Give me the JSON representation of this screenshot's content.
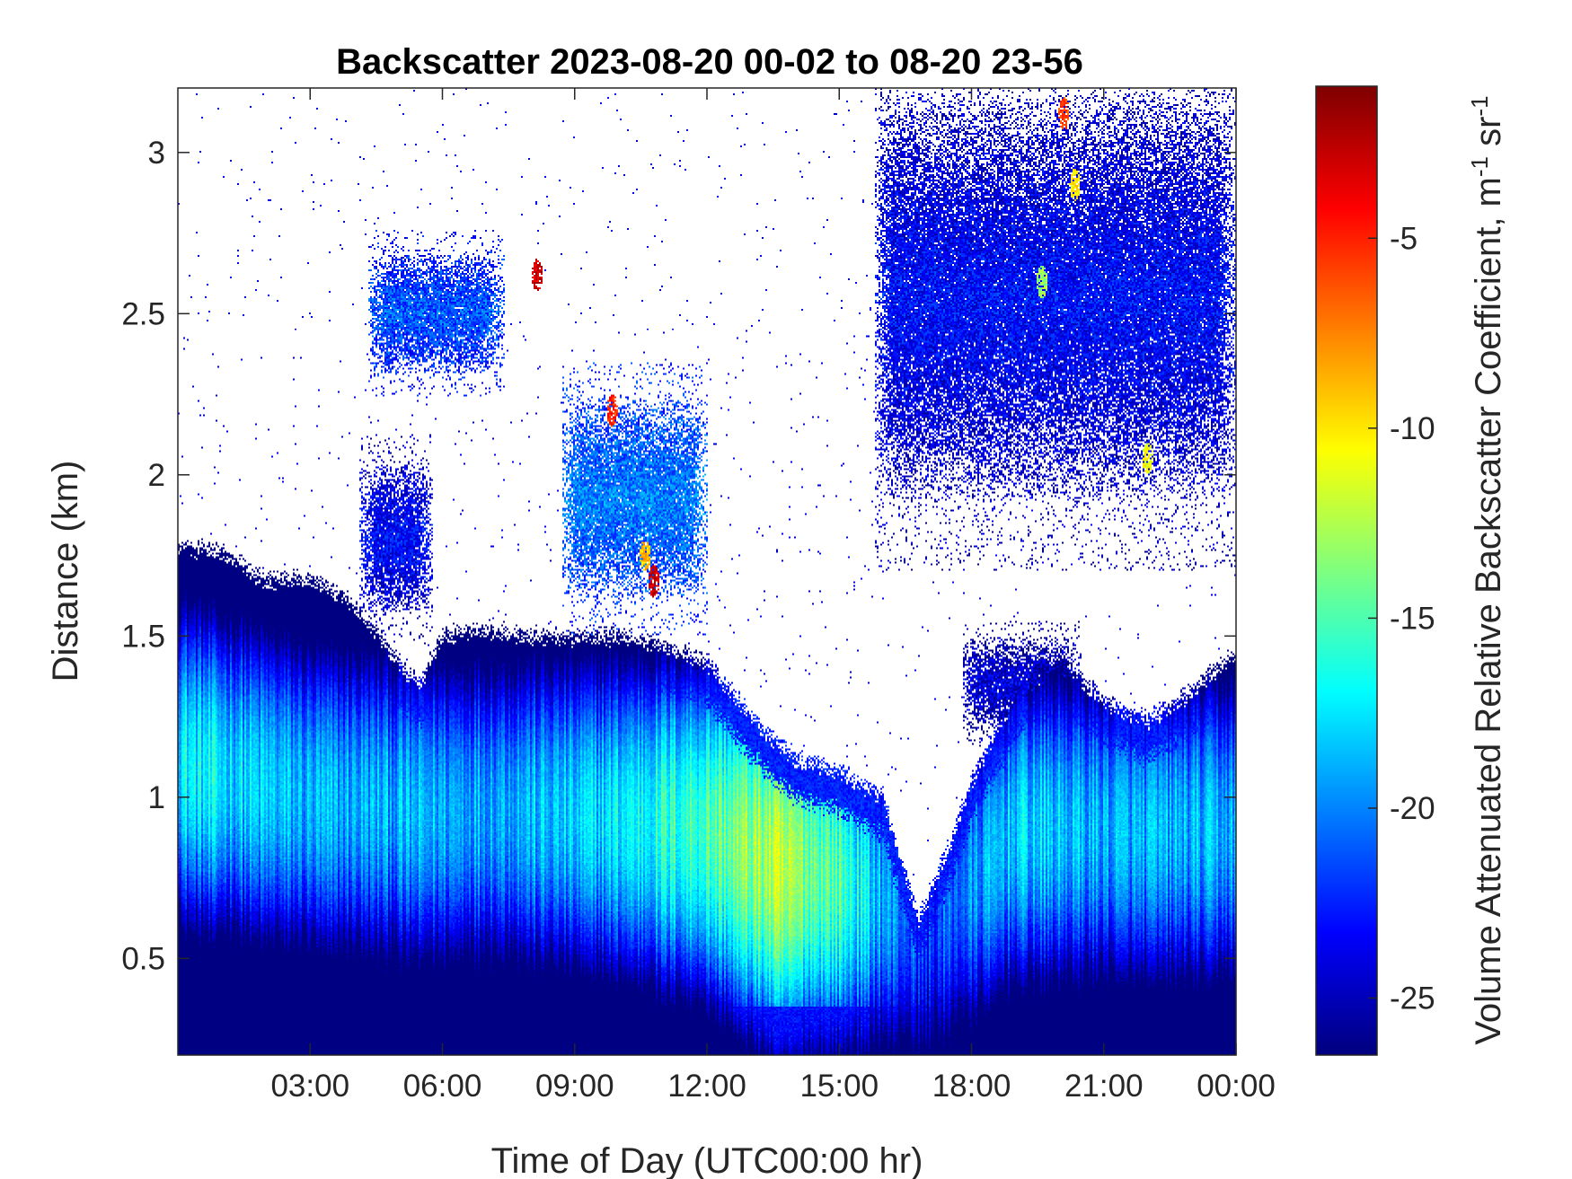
{
  "chart_data": {
    "type": "heatmap",
    "title": "Backscatter 2023-08-20 00-02 to 08-20 23-56",
    "xlabel": "Time of Day (UTC00:00 hr)",
    "ylabel": "Distance (km)",
    "colorbar_label": "Volume Attenuated Relative Backscatter Coefficient, m",
    "colorbar_label_sup1": "-1",
    "colorbar_label_mid": " sr",
    "colorbar_label_sup2": "-1",
    "xlim": [
      0,
      24
    ],
    "ylim": [
      0.2,
      3.2
    ],
    "clim": [
      -26.5,
      -1
    ],
    "colormap": "jet",
    "x_ticks": [
      {
        "value": 3,
        "label": "03:00"
      },
      {
        "value": 6,
        "label": "06:00"
      },
      {
        "value": 9,
        "label": "09:00"
      },
      {
        "value": 12,
        "label": "12:00"
      },
      {
        "value": 15,
        "label": "15:00"
      },
      {
        "value": 18,
        "label": "18:00"
      },
      {
        "value": 21,
        "label": "21:00"
      },
      {
        "value": 24,
        "label": "00:00"
      }
    ],
    "y_ticks": [
      {
        "value": 0.5,
        "label": "0.5"
      },
      {
        "value": 1,
        "label": "1"
      },
      {
        "value": 1.5,
        "label": "1.5"
      },
      {
        "value": 2,
        "label": "2"
      },
      {
        "value": 2.5,
        "label": "2.5"
      },
      {
        "value": 3,
        "label": "3"
      }
    ],
    "colorbar_ticks": [
      {
        "value": -25,
        "label": "-25"
      },
      {
        "value": -20,
        "label": "-20"
      },
      {
        "value": -15,
        "label": "-15"
      },
      {
        "value": -10,
        "label": "-10"
      },
      {
        "value": -5,
        "label": "-5"
      }
    ],
    "boundary_layer_top_km": [
      {
        "t": 0.0,
        "top": 1.78
      },
      {
        "t": 1.0,
        "top": 1.76
      },
      {
        "t": 2.0,
        "top": 1.67
      },
      {
        "t": 3.0,
        "top": 1.68
      },
      {
        "t": 4.0,
        "top": 1.6
      },
      {
        "t": 5.0,
        "top": 1.42
      },
      {
        "t": 5.5,
        "top": 1.35
      },
      {
        "t": 6.0,
        "top": 1.5
      },
      {
        "t": 7.0,
        "top": 1.52
      },
      {
        "t": 8.0,
        "top": 1.5
      },
      {
        "t": 9.0,
        "top": 1.5
      },
      {
        "t": 10.0,
        "top": 1.5
      },
      {
        "t": 11.0,
        "top": 1.47
      },
      {
        "t": 12.0,
        "top": 1.42
      },
      {
        "t": 13.0,
        "top": 1.25
      },
      {
        "t": 14.0,
        "top": 1.12
      },
      {
        "t": 15.0,
        "top": 1.08
      },
      {
        "t": 16.0,
        "top": 1.0
      },
      {
        "t": 16.3,
        "top": 0.85
      },
      {
        "t": 16.8,
        "top": 0.62
      },
      {
        "t": 17.5,
        "top": 0.85
      },
      {
        "t": 18.0,
        "top": 1.05
      },
      {
        "t": 19.0,
        "top": 1.32
      },
      {
        "t": 20.0,
        "top": 1.42
      },
      {
        "t": 21.0,
        "top": 1.3
      },
      {
        "t": 22.0,
        "top": 1.24
      },
      {
        "t": 23.0,
        "top": 1.33
      },
      {
        "t": 24.0,
        "top": 1.45
      }
    ],
    "aerosol_peak_km": [
      {
        "t": 0.0,
        "peak": 1.1,
        "value": -17
      },
      {
        "t": 3.0,
        "peak": 1.0,
        "value": -19
      },
      {
        "t": 6.0,
        "peak": 0.95,
        "value": -19
      },
      {
        "t": 9.0,
        "peak": 0.95,
        "value": -18.5
      },
      {
        "t": 12.0,
        "peak": 0.9,
        "value": -15
      },
      {
        "t": 13.5,
        "peak": 0.8,
        "value": -12.5
      },
      {
        "t": 15.0,
        "peak": 0.75,
        "value": -15
      },
      {
        "t": 16.0,
        "peak": 0.7,
        "value": -19
      },
      {
        "t": 17.0,
        "peak": 0.6,
        "value": -22
      },
      {
        "t": 19.0,
        "peak": 0.9,
        "value": -18
      },
      {
        "t": 21.0,
        "peak": 0.9,
        "value": -19
      },
      {
        "t": 24.0,
        "peak": 0.9,
        "value": -19
      }
    ],
    "cloud_layers": [
      {
        "t_start": 4.1,
        "t_end": 5.8,
        "base_km": 1.55,
        "top_km": 2.05,
        "value": -23
      },
      {
        "t_start": 4.3,
        "t_end": 7.4,
        "base_km": 2.3,
        "top_km": 2.7,
        "value": -21
      },
      {
        "t_start": 8.7,
        "t_end": 12.0,
        "base_km": 1.6,
        "top_km": 2.25,
        "value": -20
      },
      {
        "t_start": 15.8,
        "t_end": 24.0,
        "base_km": 1.9,
        "top_km": 3.2,
        "value": -23
      },
      {
        "t_start": 17.8,
        "t_end": 20.5,
        "base_km": 1.2,
        "top_km": 1.5,
        "value": -24
      }
    ],
    "features": [
      {
        "t": 8.15,
        "z_km": 2.62,
        "value": -3
      },
      {
        "t": 9.85,
        "z_km": 2.2,
        "value": -5
      },
      {
        "t": 10.8,
        "z_km": 1.67,
        "value": -3
      },
      {
        "t": 10.6,
        "z_km": 1.75,
        "value": -9
      },
      {
        "t": 19.6,
        "z_km": 2.6,
        "value": -13
      },
      {
        "t": 20.1,
        "z_km": 3.12,
        "value": -6
      },
      {
        "t": 20.35,
        "z_km": 2.9,
        "value": -10
      },
      {
        "t": 22.0,
        "z_km": 2.05,
        "value": -11
      }
    ]
  }
}
